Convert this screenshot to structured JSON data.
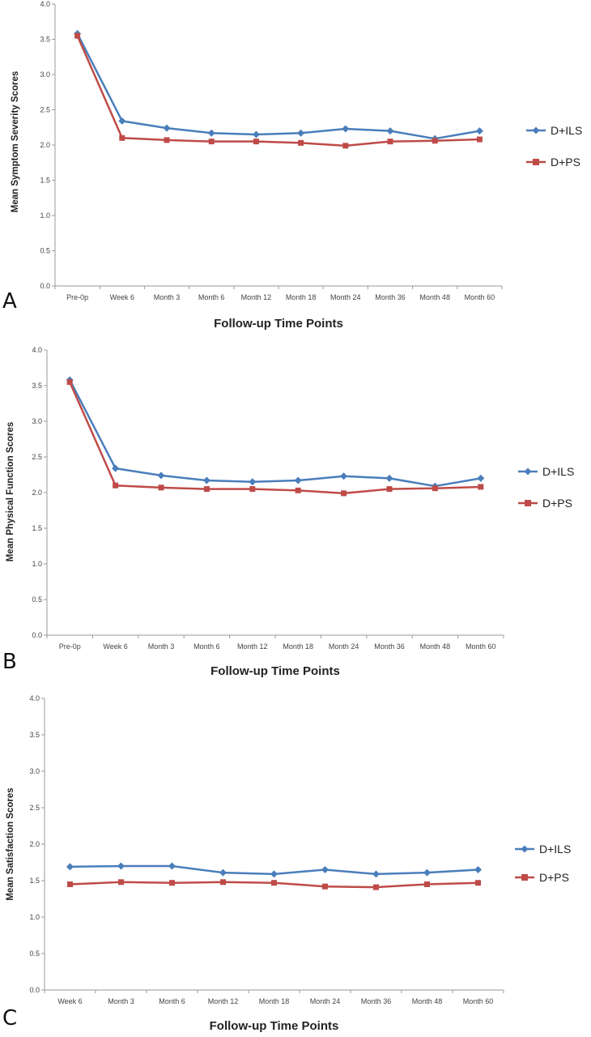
{
  "colors": {
    "D+ILS": "#4a7ebb",
    "D+PS": "#be4b48",
    "axis": "#9a9a9a"
  },
  "chart_data": [
    {
      "type": "line",
      "panel": "A",
      "ylabel": "Mean Symptom Severity Scores",
      "xlabel": "Follow-up Time Points",
      "ylim": [
        0,
        4
      ],
      "yticks": [
        "0.0",
        "0.5",
        "1.0",
        "1.5",
        "2.0",
        "2.5",
        "3.0",
        "3.5",
        "4.0"
      ],
      "categories": [
        "Pre-0p",
        "Week 6",
        "Month 3",
        "Month 6",
        "Month 12",
        "Month 18",
        "Month 24",
        "Month 36",
        "Month 48",
        "Month 60"
      ],
      "series": [
        {
          "name": "D+ILS",
          "marker": "diamond",
          "values": [
            3.58,
            2.34,
            2.24,
            2.17,
            2.15,
            2.17,
            2.23,
            2.2,
            2.09,
            2.2
          ]
        },
        {
          "name": "D+PS",
          "marker": "square",
          "values": [
            3.55,
            2.1,
            2.07,
            2.05,
            2.05,
            2.03,
            1.99,
            2.05,
            2.06,
            2.08
          ]
        }
      ]
    },
    {
      "type": "line",
      "panel": "B",
      "ylabel": "Mean Physical Function Scores",
      "xlabel": "Follow-up Time Points",
      "ylim": [
        0,
        4
      ],
      "yticks": [
        "0.0",
        "0.5",
        "1.0",
        "1.5",
        "2.0",
        "2.5",
        "3.0",
        "3.5",
        "4.0"
      ],
      "categories": [
        "Pre-0p",
        "Week 6",
        "Month 3",
        "Month 6",
        "Month 12",
        "Month 18",
        "Month 24",
        "Month 36",
        "Month 48",
        "Month 60"
      ],
      "series": [
        {
          "name": "D+ILS",
          "marker": "diamond",
          "values": [
            3.58,
            2.34,
            2.24,
            2.17,
            2.15,
            2.17,
            2.23,
            2.2,
            2.09,
            2.2
          ]
        },
        {
          "name": "D+PS",
          "marker": "square",
          "values": [
            3.55,
            2.1,
            2.07,
            2.05,
            2.05,
            2.03,
            1.99,
            2.05,
            2.06,
            2.08
          ]
        }
      ]
    },
    {
      "type": "line",
      "panel": "C",
      "ylabel": "Mean Satisfaction Scores",
      "xlabel": "Follow-up Time Points",
      "ylim": [
        0,
        4
      ],
      "yticks": [
        "0.0",
        "0.5",
        "1.0",
        "1.5",
        "2.0",
        "2.5",
        "3.0",
        "3.5",
        "4.0"
      ],
      "categories": [
        "Week 6",
        "Month 3",
        "Month 6",
        "Month 12",
        "Month 18",
        "Month 24",
        "Month 36",
        "Month 48",
        "Month 60"
      ],
      "series": [
        {
          "name": "D+ILS",
          "marker": "diamond",
          "values": [
            1.69,
            1.7,
            1.7,
            1.61,
            1.59,
            1.65,
            1.59,
            1.61,
            1.65
          ]
        },
        {
          "name": "D+PS",
          "marker": "square",
          "values": [
            1.45,
            1.48,
            1.47,
            1.48,
            1.47,
            1.42,
            1.41,
            1.45,
            1.47
          ]
        }
      ]
    }
  ]
}
